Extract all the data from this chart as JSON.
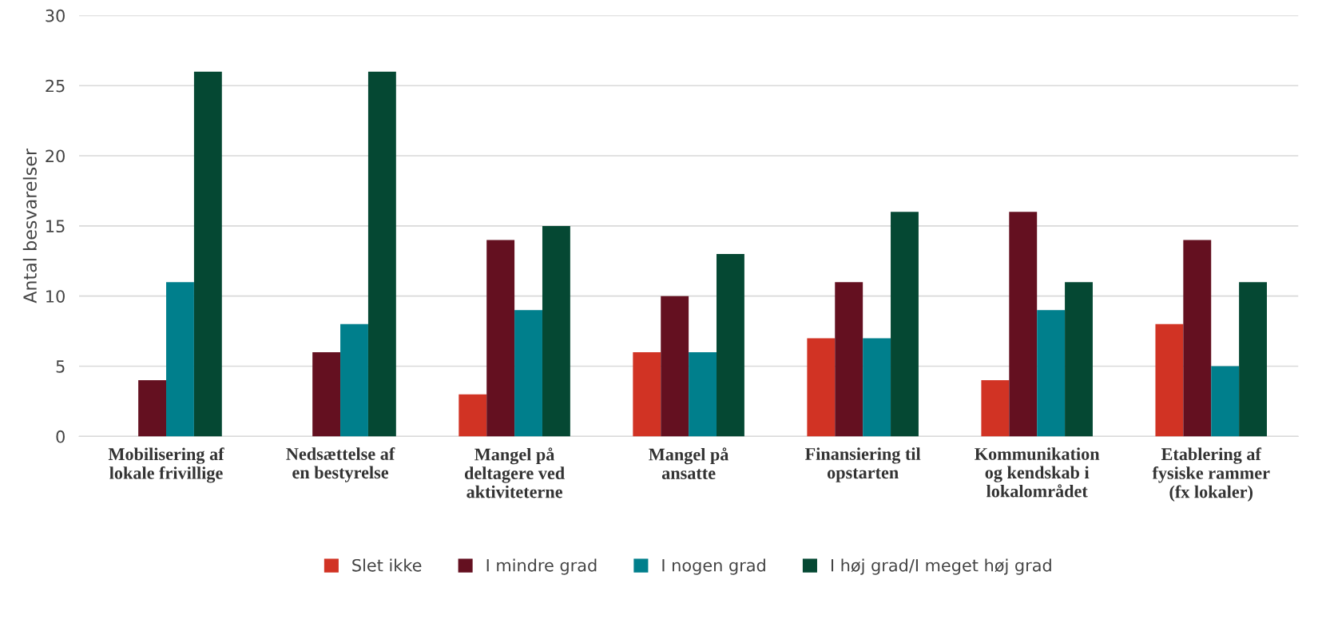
{
  "chart_data": {
    "type": "bar",
    "ylabel": "Antal besvarelser",
    "categories": [
      "Mobilisering af\nlokale frivillige",
      "Nedsættelse af\nen bestyrelse",
      "Mangel på\ndeltagere ved\naktiviteterne",
      "Mangel på\nansatte",
      "Finansiering til\nopstarten",
      "Kommunikation\nog kendskab i\nlokalområdet",
      "Etablering af\nfysiske rammer\n(fx lokaler)"
    ],
    "series": [
      {
        "name": "Slet ikke",
        "color": "#d13324",
        "values": [
          0,
          0,
          3,
          6,
          7,
          4,
          8
        ]
      },
      {
        "name": "I mindre grad",
        "color": "#641020",
        "values": [
          4,
          6,
          14,
          10,
          11,
          16,
          14
        ]
      },
      {
        "name": "I nogen grad",
        "color": "#007f8c",
        "values": [
          11,
          8,
          9,
          6,
          7,
          9,
          5
        ]
      },
      {
        "name": "I høj grad/I meget høj grad",
        "color": "#054833",
        "values": [
          26,
          26,
          15,
          13,
          16,
          11,
          11
        ]
      }
    ],
    "ylim": [
      0,
      30
    ],
    "yticks": [
      0,
      5,
      10,
      15,
      20,
      25,
      30
    ],
    "grid": "y",
    "legend": "bottom"
  }
}
